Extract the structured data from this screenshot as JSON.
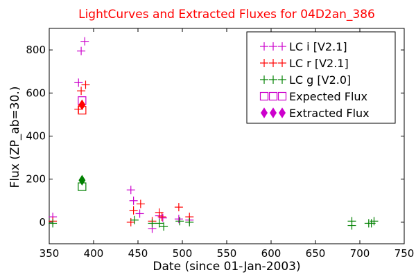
{
  "chart_data": {
    "type": "scatter",
    "title": "LightCurves and Extracted Fluxes for 04D2an_386",
    "xlabel": "Date (since 01-Jan-2003)",
    "ylabel": "Flux (ZP_ab=30.)",
    "xlim": [
      350,
      750
    ],
    "ylim": [
      -100,
      900
    ],
    "xticks": [
      350,
      400,
      450,
      500,
      550,
      600,
      650,
      700,
      750
    ],
    "yticks": [
      0,
      200,
      400,
      600,
      800
    ],
    "grid": false,
    "legend_position": "top-right",
    "series": [
      {
        "name": "LC i [V2.1]",
        "marker": "plus",
        "color": "#cc00cc",
        "points": [
          [
            354,
            25
          ],
          [
            383,
            648
          ],
          [
            386,
            795
          ],
          [
            390,
            840
          ],
          [
            442,
            150
          ],
          [
            445,
            100
          ],
          [
            452,
            40
          ],
          [
            466,
            -30
          ],
          [
            474,
            30
          ],
          [
            478,
            20
          ],
          [
            496,
            15
          ],
          [
            508,
            10
          ]
        ]
      },
      {
        "name": "LC r [V2.1]",
        "marker": "plus",
        "color": "#ff0000",
        "points": [
          [
            354,
            5
          ],
          [
            383,
            525
          ],
          [
            386,
            610
          ],
          [
            391,
            638
          ],
          [
            442,
            0
          ],
          [
            445,
            55
          ],
          [
            453,
            85
          ],
          [
            466,
            5
          ],
          [
            474,
            45
          ],
          [
            477,
            25
          ],
          [
            496,
            70
          ],
          [
            508,
            25
          ]
        ]
      },
      {
        "name": "LC g [V2.0]",
        "marker": "plus",
        "color": "#008000",
        "points": [
          [
            354,
            -5
          ],
          [
            446,
            10
          ],
          [
            466,
            -5
          ],
          [
            474,
            -5
          ],
          [
            479,
            -20
          ],
          [
            497,
            5
          ],
          [
            508,
            0
          ],
          [
            691,
            -15
          ],
          [
            691,
            5
          ],
          [
            710,
            -5
          ],
          [
            713,
            -5
          ],
          [
            716,
            5
          ]
        ]
      },
      {
        "name": "Expected Flux",
        "marker": "square-open",
        "color": "#cc00cc",
        "points": [
          [
            387,
            520
          ],
          [
            387,
            565
          ]
        ],
        "point_colors": [
          "#ff0000",
          "#cc00cc"
        ]
      },
      {
        "name": "Extracted Flux",
        "marker": "diamond",
        "color": "#cc00cc",
        "points": [
          [
            387,
            545
          ]
        ],
        "point_colors": [
          "#ff0000"
        ]
      }
    ],
    "extra_points": [
      {
        "series": "Expected Flux",
        "x": 387,
        "y": 165,
        "color": "#008000",
        "marker": "square-open"
      },
      {
        "series": "Extracted Flux",
        "x": 387,
        "y": 195,
        "color": "#008000",
        "marker": "diamond"
      }
    ]
  }
}
